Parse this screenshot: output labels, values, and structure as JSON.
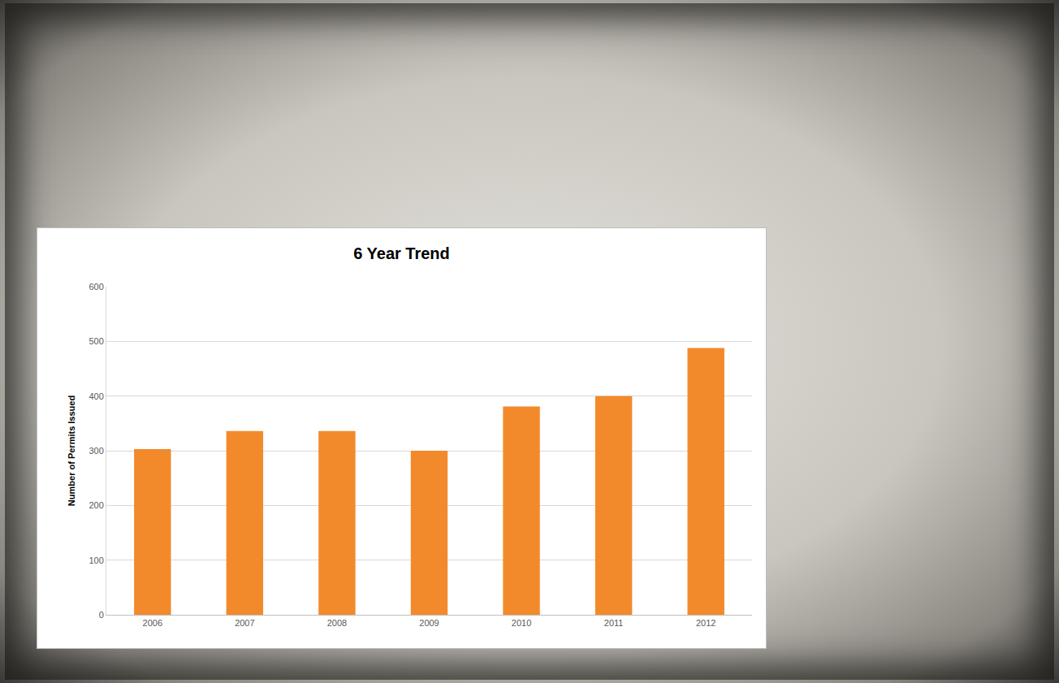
{
  "chart_data": {
    "type": "bar",
    "title": "6 Year Trend",
    "y_label": "Number of Permits Issued",
    "categories": [
      "2006",
      "2007",
      "2008",
      "2009",
      "2010",
      "2011",
      "2012"
    ],
    "values": [
      303,
      336,
      336,
      300,
      381,
      400,
      488
    ],
    "color": "#f28a2c",
    "ylim": [
      0,
      600
    ],
    "yticks": [
      0,
      100,
      200,
      300,
      400,
      500,
      600
    ],
    "grid": true
  }
}
